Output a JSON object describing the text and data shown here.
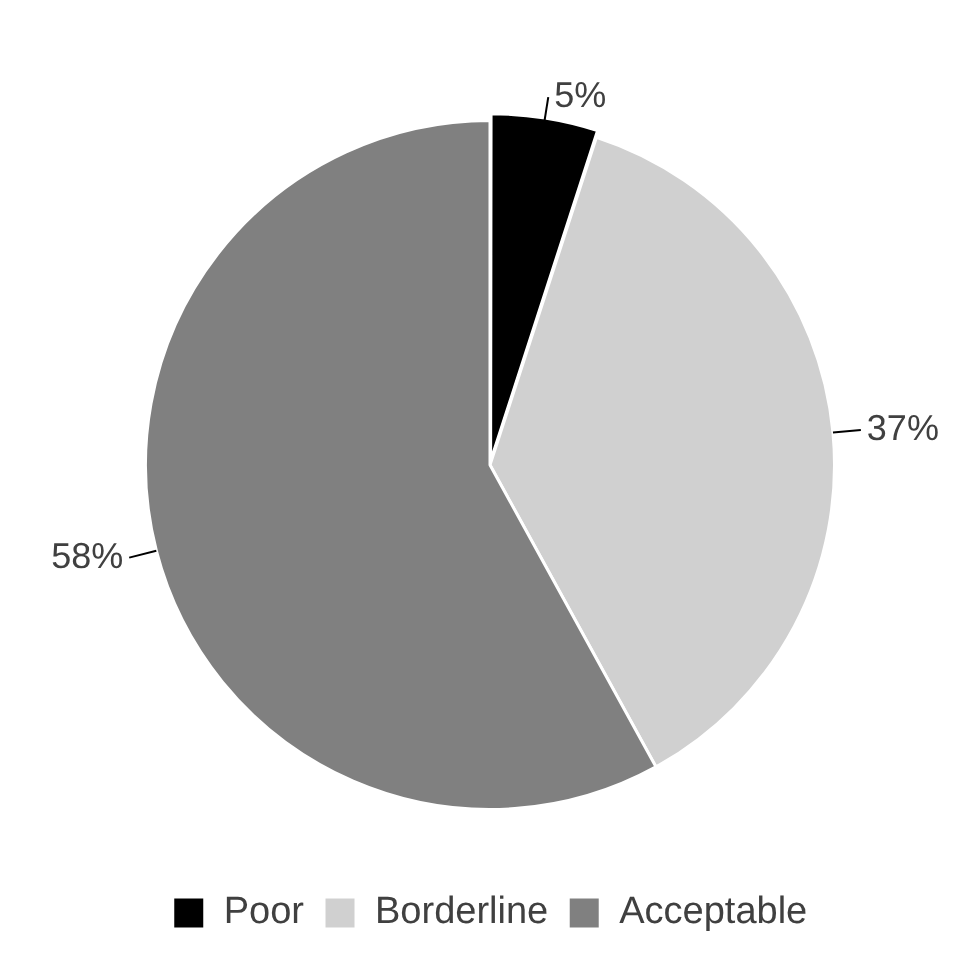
{
  "chart_data": {
    "type": "pie",
    "categories": [
      "Poor",
      "Borderline",
      "Acceptable"
    ],
    "values": [
      5,
      37,
      58
    ],
    "colors": [
      "#000000",
      "#d0d0d0",
      "#808080"
    ],
    "value_labels": [
      "5%",
      "37%",
      "58%"
    ],
    "legend": "bottom"
  }
}
